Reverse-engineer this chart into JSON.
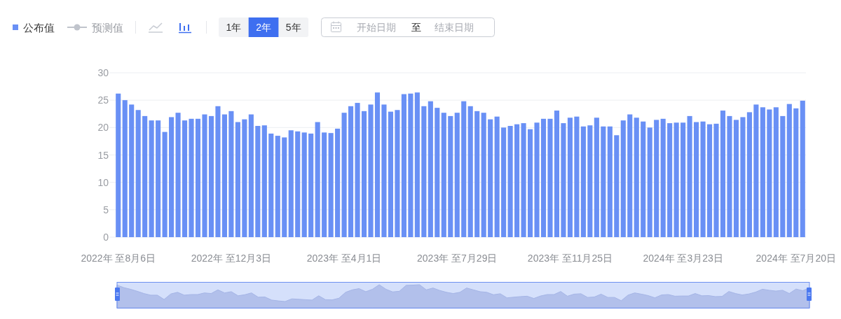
{
  "chart_data": {
    "type": "bar",
    "legend": "top left",
    "grid": "y",
    "ylim": [
      0,
      30
    ],
    "yticks": [
      0,
      5,
      10,
      15,
      20,
      25,
      30
    ],
    "categories": [
      "2022年 至8月6日",
      null,
      null,
      null,
      null,
      null,
      null,
      null,
      null,
      null,
      null,
      null,
      null,
      null,
      null,
      null,
      null,
      "2022年 至12月3日",
      null,
      null,
      null,
      null,
      null,
      null,
      null,
      null,
      null,
      null,
      null,
      null,
      null,
      null,
      null,
      null,
      "2023年 至4月1日",
      null,
      null,
      null,
      null,
      null,
      null,
      null,
      null,
      null,
      null,
      null,
      null,
      null,
      null,
      null,
      null,
      "2023年 至7月29日",
      null,
      null,
      null,
      null,
      null,
      null,
      null,
      null,
      null,
      null,
      null,
      null,
      null,
      null,
      null,
      null,
      "2023年 至11月25日",
      null,
      null,
      null,
      null,
      null,
      null,
      null,
      null,
      null,
      null,
      null,
      null,
      null,
      null,
      null,
      null,
      "2024年 至3月23日",
      null,
      null,
      null,
      null,
      null,
      null,
      null,
      null,
      null,
      null,
      null,
      null,
      null,
      null,
      null,
      null,
      "2024年 至7月20日",
      null
    ],
    "series": [
      {
        "name": "公布值",
        "color": "#6990f5",
        "values": [
          26.2,
          25.0,
          24.2,
          23.2,
          22.1,
          21.3,
          21.3,
          19.2,
          21.9,
          22.7,
          21.3,
          21.6,
          21.6,
          22.4,
          22.1,
          23.9,
          22.4,
          23.0,
          21.0,
          21.5,
          22.4,
          20.3,
          20.4,
          18.9,
          18.5,
          18.2,
          19.5,
          19.3,
          19.1,
          18.9,
          21.0,
          19.1,
          19.0,
          19.8,
          22.7,
          23.9,
          24.5,
          23.0,
          24.2,
          26.4,
          24.2,
          22.9,
          23.2,
          26.1,
          26.2,
          26.4,
          23.9,
          24.8,
          23.6,
          22.7,
          22.1,
          22.7,
          24.8,
          23.9,
          23.0,
          22.7,
          21.5,
          22.0,
          20.0,
          20.3,
          20.6,
          20.8,
          19.7,
          20.9,
          21.6,
          21.6,
          23.1,
          20.8,
          21.8,
          22.0,
          20.2,
          20.4,
          21.8,
          20.2,
          20.2,
          18.6,
          21.3,
          22.4,
          21.8,
          21.1,
          20.0,
          21.4,
          21.6,
          20.8,
          20.9,
          20.9,
          22.1,
          21.0,
          21.1,
          20.6,
          20.7,
          23.1,
          22.1,
          21.4,
          21.9,
          22.8,
          24.2,
          23.7,
          23.3,
          23.7,
          22.1,
          24.3,
          23.5,
          24.9
        ]
      },
      {
        "name": "预测值",
        "type": "line",
        "color": "#c0c4cc",
        "marker": "circle",
        "values": [
          null,
          null,
          null,
          null,
          null,
          null,
          null,
          null,
          null,
          null,
          null,
          null,
          null,
          null,
          null,
          null,
          null,
          null,
          null,
          null,
          null,
          null,
          null,
          null,
          null,
          null,
          null,
          null,
          null,
          null,
          null,
          null,
          null,
          null,
          null,
          null,
          null,
          null,
          null,
          null,
          null,
          null,
          null,
          null,
          null,
          null,
          null,
          null,
          null,
          null,
          null,
          null,
          null,
          null,
          null,
          null,
          null,
          null,
          null,
          null,
          null,
          null,
          null,
          null,
          null,
          null,
          null,
          null,
          null,
          null,
          null,
          null,
          null,
          null,
          null,
          null,
          null,
          null,
          null,
          null,
          null,
          null,
          null,
          null,
          null,
          null,
          null,
          null,
          null,
          null,
          null,
          null,
          null,
          null,
          null,
          null,
          null,
          null,
          null,
          null,
          null,
          null,
          null,
          null
        ]
      }
    ],
    "annotations": [
      "1年",
      "2年",
      "5年",
      "开始日期",
      "至",
      "结束日期"
    ]
  }
}
